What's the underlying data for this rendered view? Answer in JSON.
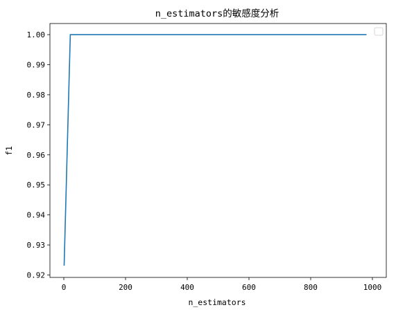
{
  "chart_data": {
    "type": "line",
    "title": "n_estimators的敏感度分析",
    "xlabel": "n_estimators",
    "ylabel": "f1",
    "xlim": [
      -45,
      1045
    ],
    "ylim": [
      0.9192,
      1.0037
    ],
    "xticks": [
      0,
      200,
      400,
      600,
      800,
      1000
    ],
    "xtick_labels": [
      "0",
      "200",
      "400",
      "600",
      "800",
      "1000"
    ],
    "yticks": [
      0.92,
      0.93,
      0.94,
      0.95,
      0.96,
      0.97,
      0.98,
      0.99,
      1.0
    ],
    "ytick_labels": [
      "0.92",
      "0.93",
      "0.94",
      "0.95",
      "0.96",
      "0.97",
      "0.98",
      "0.99",
      "1.00"
    ],
    "grid": false,
    "legend": "top-right (empty)",
    "series": [
      {
        "color": "#1f77b4",
        "x": [
          1,
          21,
          41,
          61,
          81,
          101,
          121,
          141,
          161,
          181,
          201,
          221,
          241,
          261,
          281,
          301,
          321,
          341,
          361,
          381,
          401,
          421,
          441,
          461,
          481,
          501,
          521,
          541,
          561,
          581,
          601,
          621,
          641,
          661,
          681,
          701,
          721,
          741,
          761,
          781,
          801,
          821,
          841,
          861,
          881,
          901,
          921,
          941,
          961,
          981
        ],
        "y": [
          0.9231,
          1.0,
          1.0,
          1.0,
          1.0,
          1.0,
          1.0,
          1.0,
          1.0,
          1.0,
          1.0,
          1.0,
          1.0,
          1.0,
          1.0,
          1.0,
          1.0,
          1.0,
          1.0,
          1.0,
          1.0,
          1.0,
          1.0,
          1.0,
          1.0,
          1.0,
          1.0,
          1.0,
          1.0,
          1.0,
          1.0,
          1.0,
          1.0,
          1.0,
          1.0,
          1.0,
          1.0,
          1.0,
          1.0,
          1.0,
          1.0,
          1.0,
          1.0,
          1.0,
          1.0,
          1.0,
          1.0,
          1.0,
          1.0,
          1.0
        ]
      }
    ]
  }
}
